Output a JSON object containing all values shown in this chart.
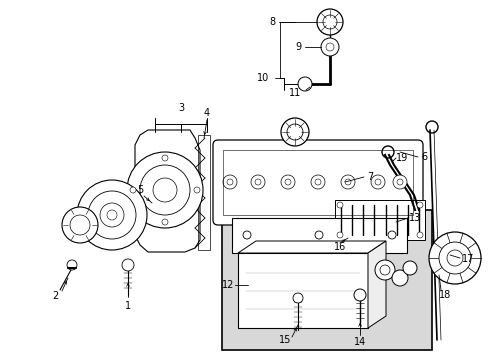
{
  "bg_color": "#ffffff",
  "line_color": "#000000",
  "fig_width": 4.89,
  "fig_height": 3.6,
  "dpi": 100,
  "font_size": 7.0
}
